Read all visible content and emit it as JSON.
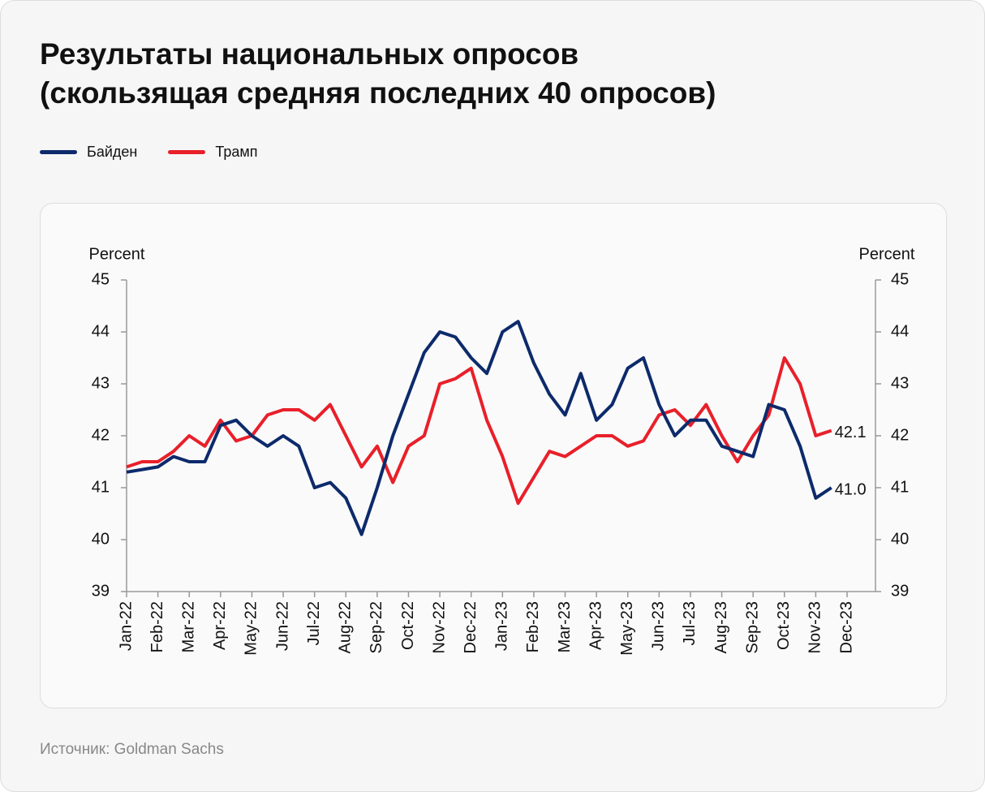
{
  "header": {
    "title_line1": "Результаты национальных опросов",
    "title_line2": "(скользящая средняя последних 40 опросов)"
  },
  "chart_data": {
    "type": "line",
    "ylabel": "Percent",
    "y2label": "Percent",
    "categories": [
      "Jan-22",
      null,
      "Feb-22",
      null,
      "Mar-22",
      null,
      "Apr-22",
      null,
      "May-22",
      null,
      "Jun-22",
      null,
      "Jul-22",
      null,
      "Aug-22",
      null,
      "Sep-22",
      null,
      "Oct-22",
      null,
      "Nov-22",
      null,
      "Dec-22",
      null,
      "Jan-23",
      null,
      "Feb-23",
      null,
      "Mar-23",
      null,
      "Apr-23",
      null,
      "May-23",
      null,
      "Jun-23",
      null,
      "Jul-23",
      null,
      "Aug-23",
      null,
      "Sep-23",
      null,
      "Oct-23",
      null,
      "Nov-23",
      null,
      "Dec-23"
    ],
    "series": [
      {
        "name": "Байден",
        "color": "#0d2a6b",
        "end_label": "41.0",
        "values": [
          41.3,
          41.35,
          41.4,
          41.6,
          41.5,
          41.5,
          42.2,
          42.3,
          42.0,
          41.8,
          42.0,
          41.8,
          41.0,
          41.1,
          40.8,
          40.1,
          41.0,
          42.0,
          42.8,
          43.6,
          44.0,
          43.9,
          43.5,
          43.2,
          44.0,
          44.2,
          43.4,
          42.8,
          42.4,
          43.2,
          42.3,
          42.6,
          43.3,
          43.5,
          42.6,
          42.0,
          42.3,
          42.3,
          41.8,
          41.7,
          41.6,
          42.6,
          42.5,
          41.8,
          40.8,
          41.0,
          null
        ]
      },
      {
        "name": "Трамп",
        "color": "#e8202a",
        "end_label": "42.1",
        "values": [
          41.4,
          41.5,
          41.5,
          41.7,
          42.0,
          41.8,
          42.3,
          41.9,
          42.0,
          42.4,
          42.5,
          42.5,
          42.3,
          42.6,
          42.0,
          41.4,
          41.8,
          41.1,
          41.8,
          42.0,
          43.0,
          43.1,
          43.3,
          42.3,
          41.6,
          40.7,
          41.2,
          41.7,
          41.6,
          41.8,
          42.0,
          42.0,
          41.8,
          41.9,
          42.4,
          42.5,
          42.2,
          42.6,
          42.0,
          41.5,
          42.0,
          42.4,
          43.5,
          43.0,
          42.0,
          42.1,
          null
        ]
      }
    ],
    "ylim": [
      39,
      45
    ],
    "yticks": [
      39,
      40,
      41,
      42,
      43,
      44,
      45
    ],
    "y2lim": [
      39,
      45
    ],
    "y2ticks": [
      39,
      40,
      41,
      42,
      43,
      44,
      45
    ],
    "grid": false
  },
  "footer": {
    "source": "Источник: Goldman Sachs"
  }
}
